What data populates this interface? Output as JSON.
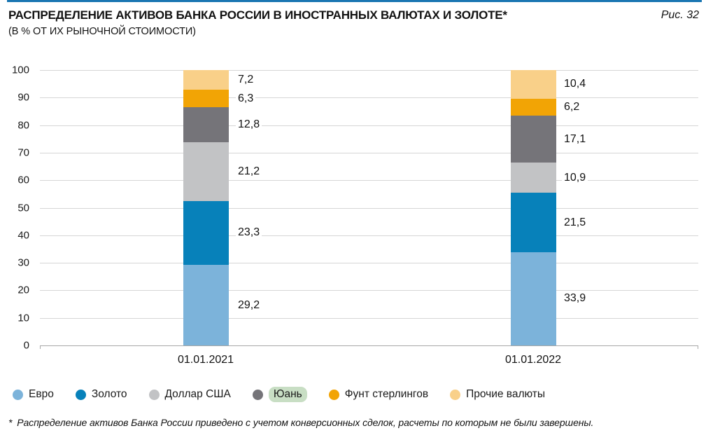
{
  "page": {
    "title": "РАСПРЕДЕЛЕНИЕ АКТИВОВ БАНКА РОССИИ В ИНОСТРАННЫХ ВАЛЮТАХ И ЗОЛОТЕ*",
    "subtitle": "(В % ОТ ИХ РЫНОЧНОЙ СТОИМОСТИ)",
    "figure_label": "Рис. 32",
    "footnote": "* Распределение активов Банка России приведено с учетом конверсионных сделок, расчеты по которым не были завершены.",
    "accent_rule_color": "#1a76b2"
  },
  "chart_data": {
    "type": "bar",
    "stacked": true,
    "orientation": "vertical",
    "categories": [
      "01.01.2021",
      "01.01.2022"
    ],
    "series": [
      {
        "name": "Евро",
        "color": "#7cb3da",
        "values": [
          29.2,
          33.9
        ]
      },
      {
        "name": "Золото",
        "color": "#0781ba",
        "values": [
          23.3,
          21.5
        ]
      },
      {
        "name": "Доллар США",
        "color": "#c2c3c5",
        "values": [
          21.2,
          10.9
        ]
      },
      {
        "name": "Юань",
        "color": "#757479",
        "values": [
          12.8,
          17.1
        ],
        "legend_highlight": "#c8dec4"
      },
      {
        "name": "Фунт стерлингов",
        "color": "#f2a405",
        "values": [
          6.3,
          6.2
        ]
      },
      {
        "name": "Прочие валюты",
        "color": "#f9d089",
        "values": [
          7.2,
          10.4
        ]
      }
    ],
    "ylim": [
      0,
      100
    ],
    "ytick_step": 10,
    "grid": true,
    "value_labels": true,
    "decimal_separator": ",",
    "legend_position": "bottom"
  }
}
